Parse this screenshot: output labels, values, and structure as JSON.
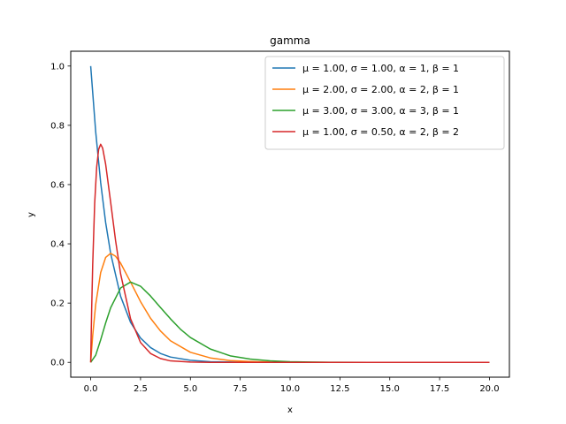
{
  "chart_data": {
    "type": "line",
    "title": "gamma",
    "xlabel": "x",
    "ylabel": "y",
    "xlim": [
      -1.0,
      21.0
    ],
    "ylim": [
      -0.05,
      1.05
    ],
    "xticks": [
      0.0,
      2.5,
      5.0,
      7.5,
      10.0,
      12.5,
      15.0,
      17.5,
      20.0
    ],
    "xtick_labels": [
      "0.0",
      "2.5",
      "5.0",
      "7.5",
      "10.0",
      "12.5",
      "15.0",
      "17.5",
      "20.0"
    ],
    "yticks": [
      0.0,
      0.2,
      0.4,
      0.6,
      0.8,
      1.0
    ],
    "ytick_labels": [
      "0.0",
      "0.2",
      "0.4",
      "0.6",
      "0.8",
      "1.0"
    ],
    "grid": false,
    "legend_position": "top-right",
    "series": [
      {
        "name": "μ = 1.00,  σ = 1.00,  α = 1,  β = 1",
        "color": "#1f77b4",
        "x": [
          0,
          0.25,
          0.5,
          0.75,
          1,
          1.5,
          2,
          2.5,
          3,
          3.5,
          4,
          5,
          6,
          7,
          8,
          9,
          10,
          12,
          14,
          16,
          18,
          20
        ],
        "y": [
          1.0,
          0.779,
          0.607,
          0.472,
          0.368,
          0.223,
          0.135,
          0.082,
          0.05,
          0.03,
          0.018,
          0.007,
          0.002,
          0.001,
          0.0003,
          0.0001,
          0.0,
          0.0,
          0.0,
          0.0,
          0.0,
          0.0
        ]
      },
      {
        "name": "μ = 2.00,  σ = 2.00,  α = 2,  β = 1",
        "color": "#ff7f0e",
        "x": [
          0,
          0.1,
          0.25,
          0.5,
          0.75,
          1,
          1.25,
          1.5,
          2,
          2.5,
          3,
          3.5,
          4,
          5,
          6,
          7,
          8,
          9,
          10,
          12,
          14,
          16,
          18,
          20
        ],
        "y": [
          0.0,
          0.09,
          0.195,
          0.303,
          0.354,
          0.368,
          0.358,
          0.335,
          0.271,
          0.205,
          0.149,
          0.106,
          0.073,
          0.034,
          0.015,
          0.006,
          0.003,
          0.001,
          0.0005,
          0.0,
          0.0,
          0.0,
          0.0,
          0.0
        ]
      },
      {
        "name": "μ = 3.00,  σ = 3.00,  α = 3,  β = 1",
        "color": "#2ca02c",
        "x": [
          0,
          0.25,
          0.5,
          0.75,
          1,
          1.5,
          2,
          2.5,
          3,
          3.5,
          4,
          4.5,
          5,
          6,
          7,
          8,
          9,
          10,
          11,
          12,
          14,
          16,
          18,
          20
        ],
        "y": [
          0.0,
          0.024,
          0.076,
          0.133,
          0.184,
          0.251,
          0.271,
          0.257,
          0.224,
          0.185,
          0.147,
          0.112,
          0.084,
          0.045,
          0.022,
          0.011,
          0.005,
          0.002,
          0.001,
          0.0004,
          0.0,
          0.0,
          0.0,
          0.0
        ]
      },
      {
        "name": "μ = 1.00,  σ = 0.50,  α = 2,  β = 2",
        "color": "#d62728",
        "x": [
          0,
          0.05,
          0.1,
          0.2,
          0.3,
          0.4,
          0.5,
          0.6,
          0.75,
          1,
          1.25,
          1.5,
          2,
          2.5,
          3,
          3.5,
          4,
          5,
          6,
          7,
          8,
          10,
          12,
          14,
          16,
          18,
          20
        ],
        "y": [
          0.0,
          0.181,
          0.327,
          0.536,
          0.659,
          0.719,
          0.736,
          0.723,
          0.669,
          0.541,
          0.41,
          0.299,
          0.147,
          0.067,
          0.03,
          0.013,
          0.005,
          0.001,
          0.0001,
          0.0,
          0.0,
          0.0,
          0.0,
          0.0,
          0.0,
          0.0,
          0.0
        ]
      }
    ]
  }
}
